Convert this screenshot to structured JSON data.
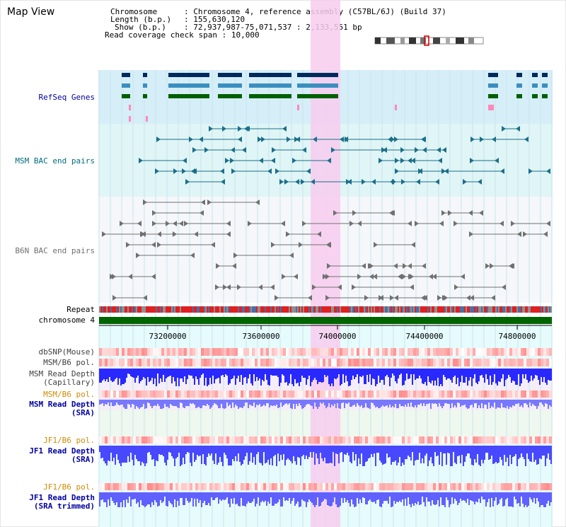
{
  "title": "Map View",
  "info": {
    "chromosome_label": "Chromosome",
    "chromosome_value": "Chromosome 4, reference assembly (C57BL/6J) (Build 37)",
    "length_label": "Length (b.p.)",
    "length_value": "155,630,120",
    "show_label": "Show (b.p.)",
    "show_value": "72,937,987-75,071,537 : 2,133,551 bp",
    "coverage_label": "Read coverage check span",
    "coverage_value": "10,000"
  },
  "tracks": {
    "refseq": "RefSeq Genes",
    "msm_bac": "MSM BAC end pairs",
    "b6n_bac": "B6N BAC end pairs",
    "repeat": "Repeat",
    "chromosome": "chromosome 4",
    "dbsnp": "dbSNP(Mouse)",
    "msm_b6_pol_1": "MSM/B6 pol.",
    "msm_depth_cap_1": "MSM Read Depth",
    "msm_depth_cap_2": "(Capillary)",
    "msm_b6_pol_2": "MSM/B6 pol.",
    "msm_depth_sra_1": "MSM Read Depth",
    "msm_depth_sra_2": "(SRA)",
    "jf1_b6_pol_1": "JF1/B6 pol.",
    "jf1_depth_1": "JF1 Read Depth",
    "jf1_depth_2": "(SRA)",
    "jf1_b6_pol_2": "JF1/B6 pol.",
    "jf1_trim_1": "JF1 Read Depth",
    "jf1_trim_2": "(SRA trimmed)"
  },
  "axis_ticks": [
    "73200000",
    "73600000",
    "74000000",
    "74400000",
    "74800000"
  ],
  "colors": {
    "refseq_bg": "#d6eef8",
    "msm_bac_bg": "#e0f5f5",
    "b6n_bg": "#f5f7fa",
    "highlight": "#f7cdee",
    "chromosome": "#006400",
    "repeat": "#e02020",
    "depth_blue": "#2828ff",
    "depth_light": "#7878ff"
  }
}
